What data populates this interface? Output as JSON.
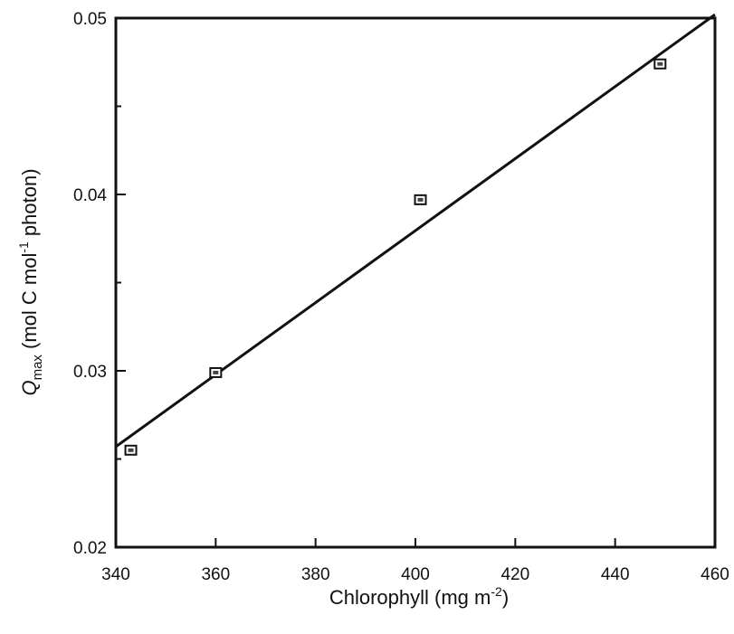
{
  "chart_data": {
    "type": "scatter",
    "xlabel": "Chlorophyll (mg m",
    "xlabel_sup": "-2",
    "xlabel_end": ")",
    "ylabel_main": "Q",
    "ylabel_sub": "max",
    "ylabel_mid": " (mol C mol",
    "ylabel_sup": "-1",
    "ylabel_end": " photon)",
    "xlim": [
      340,
      460
    ],
    "ylim": [
      0.02,
      0.05
    ],
    "x_ticks": [
      340,
      360,
      380,
      400,
      420,
      440,
      460
    ],
    "x_tick_labels": [
      "340",
      "360",
      "380",
      "400",
      "420",
      "440",
      "460"
    ],
    "y_major_ticks": [
      0.02,
      0.03,
      0.04,
      0.05
    ],
    "y_tick_labels": [
      "0.02",
      "0.03",
      "0.04",
      "0.05"
    ],
    "y_minor_ticks": [
      0.025,
      0.035,
      0.045
    ],
    "points": [
      {
        "x": 343,
        "y": 0.0255
      },
      {
        "x": 360,
        "y": 0.0299
      },
      {
        "x": 401,
        "y": 0.0397
      },
      {
        "x": 449,
        "y": 0.0474
      }
    ],
    "fit_line": {
      "x": [
        340,
        460
      ],
      "y": [
        0.0257,
        0.0502
      ]
    },
    "grid": false,
    "legend": "none"
  }
}
